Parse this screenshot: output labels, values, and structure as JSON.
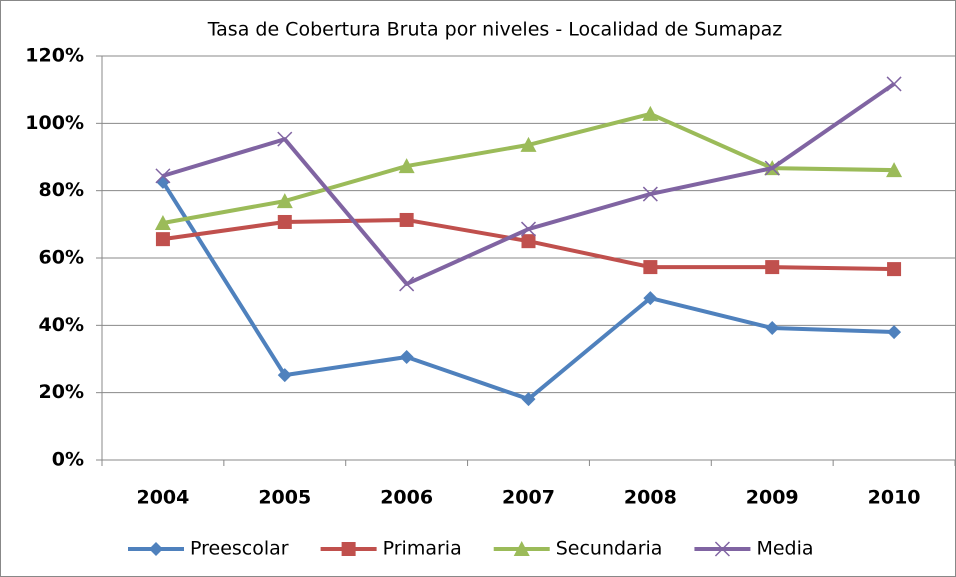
{
  "chart_data": {
    "type": "line",
    "title": "Tasa de Cobertura Bruta por niveles - Localidad de  Sumapaz",
    "categories": [
      "2004",
      "2005",
      "2006",
      "2007",
      "2008",
      "2009",
      "2010"
    ],
    "series": [
      {
        "name": "Preescolar",
        "color": "#4f81bd",
        "marker": "diamond",
        "values": [
          82.6,
          25.2,
          30.6,
          18.1,
          48.1,
          39.2,
          38.0
        ]
      },
      {
        "name": "Primaria",
        "color": "#c0504d",
        "marker": "square",
        "values": [
          65.6,
          70.7,
          71.3,
          65.0,
          57.3,
          57.3,
          56.7
        ]
      },
      {
        "name": "Secundaria",
        "color": "#9bbb59",
        "marker": "triangle",
        "values": [
          70.4,
          76.9,
          87.3,
          93.6,
          102.8,
          86.7,
          86.1
        ]
      },
      {
        "name": "Media",
        "color": "#8064a2",
        "marker": "x",
        "values": [
          84.4,
          95.3,
          52.3,
          68.6,
          79.0,
          86.7,
          111.7
        ]
      }
    ],
    "ylim": [
      0,
      120
    ],
    "yticks": [
      {
        "value": 0,
        "label": "0%"
      },
      {
        "value": 20,
        "label": "20%"
      },
      {
        "value": 40,
        "label": "40%"
      },
      {
        "value": 60,
        "label": "60%"
      },
      {
        "value": 80,
        "label": "80%"
      },
      {
        "value": 100,
        "label": "100%"
      },
      {
        "value": 120,
        "label": "120%"
      }
    ],
    "grid": true,
    "legend": "bottom"
  }
}
